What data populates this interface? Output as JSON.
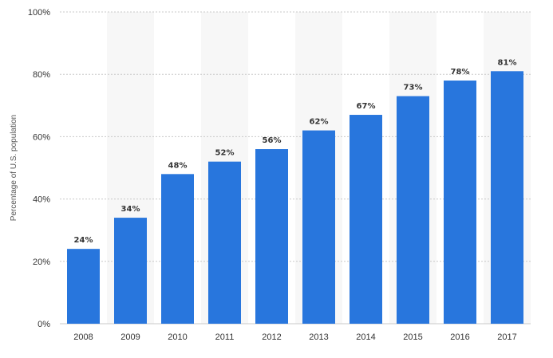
{
  "chart_data": {
    "type": "bar",
    "categories": [
      "2008",
      "2009",
      "2010",
      "2011",
      "2012",
      "2013",
      "2014",
      "2015",
      "2016",
      "2017"
    ],
    "values": [
      24,
      34,
      48,
      52,
      56,
      62,
      67,
      73,
      78,
      81
    ],
    "data_labels": [
      "24%",
      "34%",
      "48%",
      "52%",
      "56%",
      "62%",
      "67%",
      "73%",
      "78%",
      "81%"
    ],
    "ylabel": "Percentage of U.S. population",
    "ylim": [
      0,
      100
    ],
    "yticks": [
      0,
      20,
      40,
      60,
      80,
      100
    ],
    "ytick_labels": [
      "0%",
      "20%",
      "40%",
      "60%",
      "80%",
      "100%"
    ],
    "grid": true,
    "legend": "none",
    "colors": {
      "bar": "#2876dd",
      "band": "#f7f7f7",
      "grid": "#c8c8c8"
    }
  }
}
